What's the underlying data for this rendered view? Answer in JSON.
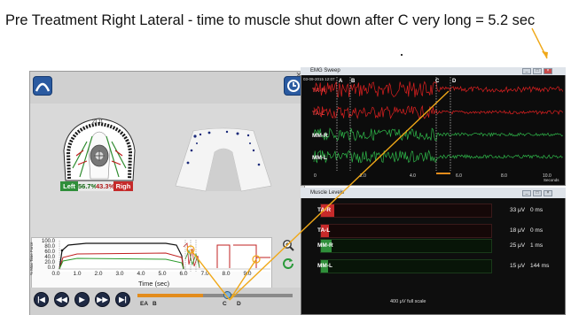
{
  "caption": "Pre Treatment Right Lateral - time to muscle shut down after C very long  = 5.2 sec",
  "balance": {
    "left_label": "Left",
    "left_value": "56.7%",
    "right_value": "43.3%",
    "right_label": "Righ"
  },
  "graph": {
    "y_title": "% Max Time Force",
    "y_ticks": [
      "100.0",
      "80.0",
      "60.0",
      "40.0",
      "20.0",
      "0.0"
    ],
    "x_ticks": [
      "0.0",
      "1.0",
      "2.0",
      "3.0",
      "4.0",
      "5.0",
      "6.0",
      "7.0",
      "8.0",
      "9.0"
    ],
    "x_title": "Time (sec)"
  },
  "transport": {
    "markers": [
      "EA",
      "B",
      "C",
      "D"
    ]
  },
  "emg_sweep": {
    "title": "EMG Sweep",
    "date": "03-09-2015 12:07",
    "channels": [
      {
        "label": "TA-R",
        "color": "#e02020"
      },
      {
        "label": "TA-L",
        "color": "#e02020"
      },
      {
        "label": "MM-R",
        "color": "#2fb84a"
      },
      {
        "label": "MM-L",
        "color": "#2fb84a"
      }
    ],
    "markers": [
      "A",
      "B",
      "C",
      "D"
    ],
    "x_ticks": [
      "0",
      "2.0",
      "4.0",
      "6.0",
      "8.0",
      "10.0"
    ],
    "x_unit": "Seconds"
  },
  "muscle_levels": {
    "title": "Muscle Levels",
    "rows": [
      {
        "label": "TA-R",
        "uv": "33 μV",
        "ms": "0 ms",
        "color": "#c62a2a",
        "level": 0.08
      },
      {
        "label": "TA-L",
        "uv": "18 μV",
        "ms": "0 ms",
        "color": "#c62a2a",
        "level": 0.045
      },
      {
        "label": "MM-R",
        "uv": "25 μV",
        "ms": "1 ms",
        "color": "#2f8f3a",
        "level": 0.06
      },
      {
        "label": "MM-L",
        "uv": "15 μV",
        "ms": "144 ms",
        "color": "#2f8f3a",
        "level": 0.04
      }
    ],
    "scale": "400 μV full scale"
  },
  "colors": {
    "annotation_arrow": "#f0a818"
  },
  "icons": [
    "app-logo-icon",
    "history-icon",
    "zoom-in-icon",
    "refresh-icon",
    "skip-back-icon",
    "rewind-icon",
    "play-icon",
    "fast-forward-icon",
    "skip-forward-icon"
  ]
}
